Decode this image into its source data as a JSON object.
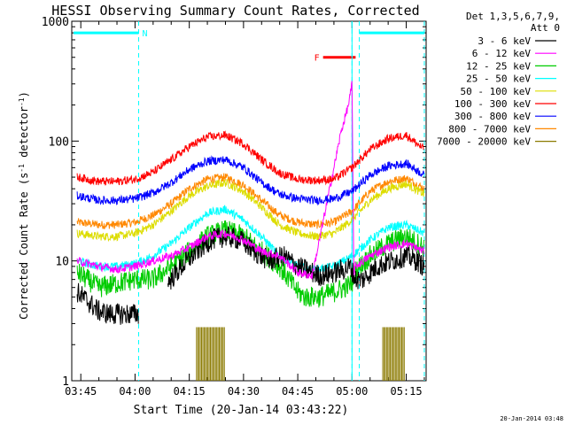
{
  "chart_data": {
    "type": "line",
    "title": "HESSI Observing Summary Count Rates, Corrected",
    "xlabel": "Start Time (20-Jan-14 03:43:22)",
    "ylabel_main": "Corrected Count Rate (s",
    "ylabel_sup1": "-1",
    "ylabel_mid": " detector",
    "ylabel_sup2": "-1",
    "ylabel_end": ")",
    "y_scale": "log",
    "ylim": [
      1,
      1000
    ],
    "xlim_minutes": [
      -2.5,
      95.5
    ],
    "x_ticks": [
      {
        "label": "03:45",
        "m": 0
      },
      {
        "label": "04:00",
        "m": 15
      },
      {
        "label": "04:15",
        "m": 30
      },
      {
        "label": "04:30",
        "m": 45
      },
      {
        "label": "04:45",
        "m": 60
      },
      {
        "label": "05:00",
        "m": 75
      },
      {
        "label": "05:15",
        "m": 90
      }
    ],
    "y_ticks": [
      {
        "label": "1",
        "v": 1
      },
      {
        "label": "10",
        "v": 10
      },
      {
        "label": "100",
        "v": 100
      },
      {
        "label": "1000",
        "v": 1000
      }
    ],
    "legend": {
      "header_line1": "Det 1,3,5,6,7,9,",
      "header_line2": "Att 0",
      "placement": "right"
    },
    "series": [
      {
        "name": "3 - 6 keV",
        "color": "#000000",
        "x": [
          -1,
          5,
          8,
          12,
          16,
          20,
          24,
          28,
          32,
          36,
          40,
          44,
          48,
          52,
          56,
          60,
          64,
          66,
          70,
          73,
          74.5,
          76,
          78,
          82,
          86,
          90,
          93,
          95
        ],
        "y": [
          5.5,
          3.8,
          3.6,
          3.6,
          3.6,
          null,
          6.5,
          9,
          12,
          15,
          16,
          15,
          12,
          10,
          11,
          9,
          8,
          7.5,
          8,
          8.5,
          9,
          7,
          7,
          9,
          10,
          11,
          10,
          9
        ]
      },
      {
        "name": "6 - 12 keV",
        "color": "#ff00ff",
        "x": [
          -1,
          5,
          10,
          15,
          20,
          25,
          30,
          35,
          40,
          45,
          50,
          55,
          60,
          64,
          66,
          68,
          70,
          72,
          74,
          75,
          75.5,
          76,
          80,
          85,
          90,
          95
        ],
        "y": [
          10,
          9,
          8.5,
          9,
          10,
          11,
          13,
          16,
          17,
          15,
          12,
          11,
          8,
          7.5,
          15,
          30,
          60,
          120,
          200,
          300,
          8,
          9,
          11,
          13,
          14,
          12
        ]
      },
      {
        "name": "12 - 25 keV",
        "color": "#00cc00",
        "x": [
          -1,
          5,
          10,
          15,
          20,
          25,
          30,
          35,
          40,
          45,
          50,
          55,
          60,
          62,
          66,
          70,
          73,
          75,
          75.5,
          80,
          85,
          90,
          95
        ],
        "y": [
          8,
          6,
          6.5,
          7,
          7,
          9,
          12,
          16,
          18,
          16,
          12,
          9,
          5.5,
          5,
          5,
          5.5,
          6,
          6.5,
          8,
          11,
          14,
          16,
          13
        ]
      },
      {
        "name": "25 - 50 keV",
        "color": "#00ffff",
        "x": [
          -1,
          5,
          10,
          15,
          20,
          25,
          30,
          35,
          40,
          45,
          50,
          55,
          60,
          65,
          70,
          75,
          80,
          85,
          90,
          95
        ],
        "y": [
          10,
          9,
          9,
          9.5,
          11,
          14,
          19,
          25,
          27,
          22,
          16,
          11,
          9,
          8.5,
          9,
          11,
          15,
          19,
          20,
          17
        ]
      },
      {
        "name": "50 - 100 keV",
        "color": "#dddd00",
        "x": [
          -1,
          5,
          10,
          15,
          20,
          25,
          30,
          35,
          40,
          45,
          50,
          55,
          60,
          65,
          70,
          75,
          80,
          85,
          90,
          95
        ],
        "y": [
          17,
          16,
          16,
          17,
          20,
          26,
          35,
          42,
          45,
          38,
          28,
          20,
          17,
          16,
          17,
          22,
          32,
          40,
          44,
          36
        ]
      },
      {
        "name": "100 - 300 keV",
        "color": "#ff0000",
        "x": [
          -1,
          5,
          10,
          15,
          20,
          25,
          30,
          35,
          40,
          45,
          50,
          55,
          60,
          65,
          70,
          75,
          80,
          85,
          90,
          95
        ],
        "y": [
          50,
          46,
          46,
          48,
          55,
          70,
          90,
          108,
          112,
          95,
          70,
          54,
          48,
          47,
          48,
          60,
          85,
          105,
          112,
          85
        ]
      },
      {
        "name": "300 - 800 keV",
        "color": "#0000ff",
        "x": [
          -1,
          5,
          10,
          15,
          20,
          25,
          30,
          35,
          40,
          45,
          50,
          55,
          60,
          65,
          70,
          75,
          80,
          85,
          90,
          95
        ],
        "y": [
          35,
          32,
          32,
          33,
          37,
          45,
          58,
          68,
          70,
          60,
          45,
          36,
          33,
          32,
          33,
          38,
          52,
          62,
          65,
          52
        ]
      },
      {
        "name": "800 - 7000 keV",
        "color": "#ff8800",
        "x": [
          -1,
          5,
          10,
          15,
          20,
          25,
          30,
          35,
          40,
          45,
          50,
          55,
          60,
          65,
          70,
          75,
          80,
          85,
          90,
          95
        ],
        "y": [
          21,
          20,
          20,
          21,
          24,
          30,
          40,
          48,
          50,
          43,
          32,
          24,
          21,
          20,
          21,
          26,
          38,
          46,
          49,
          40
        ]
      },
      {
        "name": "7000 - 20000 keV",
        "color": "#8b7a00",
        "x": [],
        "y": []
      }
    ],
    "attenuator_bursts": [
      {
        "m_start": 32,
        "m_end": 40,
        "v": 2.8
      },
      {
        "m_start": 83.5,
        "m_end": 89.5,
        "v": 2.8
      }
    ],
    "annotations": {
      "night_label": "N",
      "flare_label": "F",
      "night_bars": [
        {
          "m_start": -2,
          "m_end": 16,
          "v": 800
        },
        {
          "m_start": 77,
          "m_end": 95,
          "v": 800
        }
      ],
      "flare_bar": {
        "m_start": 67,
        "m_end": 76,
        "v": 500
      },
      "dashed_lines_m": [
        16,
        75,
        77,
        95
      ],
      "solid_line_m": 75,
      "color_night": "#00ffff",
      "color_flare": "#ff0000"
    },
    "footer_timestamp": "20-Jan-2014 03:48"
  }
}
